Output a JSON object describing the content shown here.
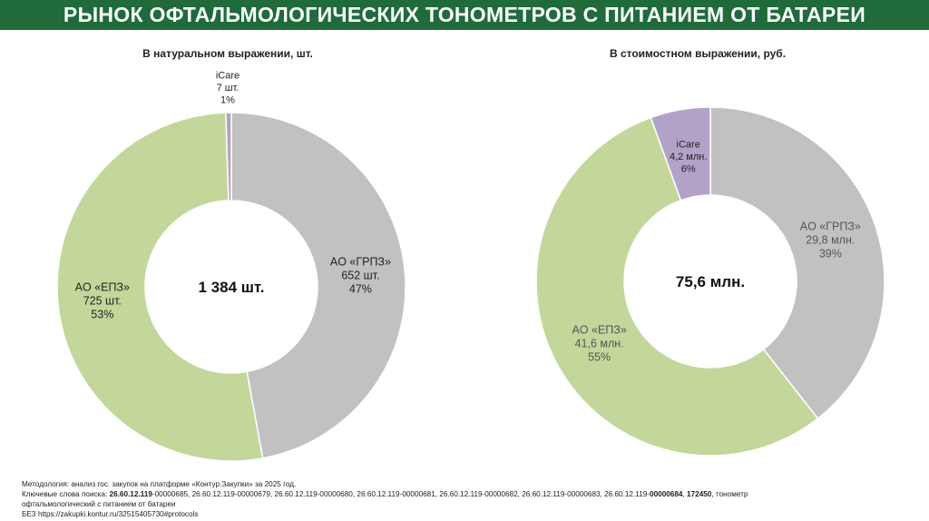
{
  "header": {
    "title": "РЫНОК ОФТАЛЬМОЛОГИЧЕСКИХ ТОНОМЕТРОВ С ПИТАНИЕМ ОТ БАТАРЕИ"
  },
  "colors": {
    "header_bg": "#1f6b3a",
    "grpz": "#c1c1c1",
    "epz": "#c4d79b",
    "icare": "#b3a2c7"
  },
  "chart_data": [
    {
      "type": "donut",
      "title": "В натуральном выражении, шт.",
      "total_label": "1 384 шт.",
      "slices": [
        {
          "name": "AO «ГРПЗ»",
          "value": 652,
          "value_label": "652 шт.",
          "percent": 47,
          "percent_label": "47%",
          "color": "#c1c1c1"
        },
        {
          "name": "AO «ЕПЗ»",
          "value": 725,
          "value_label": "725 шт.",
          "percent": 53,
          "percent_label": "53%",
          "color": "#c4d79b"
        },
        {
          "name": "iCare",
          "value": 7,
          "value_label": "7 шт.",
          "percent": 1,
          "percent_label": "1%",
          "color": "#b3a2c7"
        }
      ]
    },
    {
      "type": "donut",
      "title": "В стоимостном выражении, руб.",
      "total_label": "75,6 млн.",
      "slices": [
        {
          "name": "AO «ГРПЗ»",
          "value": 29.8,
          "value_label": "29,8 млн.",
          "percent": 39,
          "percent_label": "39%",
          "color": "#c1c1c1"
        },
        {
          "name": "AO «ЕПЗ»",
          "value": 41.6,
          "value_label": "41,6 млн.",
          "percent": 55,
          "percent_label": "55%",
          "color": "#c4d79b"
        },
        {
          "name": "iCare",
          "value": 4.2,
          "value_label": "4,2 млн.",
          "percent": 6,
          "percent_label": "6%",
          "color": "#b3a2c7"
        }
      ]
    }
  ],
  "footer": {
    "methodology": "Методология: анализ гос. закупок на платформе «Контур.Закупки» за 2025 год.",
    "keywords_prefix": "Ключевые слова поиска:",
    "keywords_b1": "26.60.12.119",
    "keywords_p1": "-00000685, 26.60.12.119-00000679, 26.60.12.119-00000680, 26.60.12.119-00000681, 26.60.12.119-00000682, 26.60.12.119-00000683, 26.60.12.119-",
    "keywords_b2": "00000684",
    "keywords_p2": ",",
    "keywords_b3": "172450",
    "keywords_p3": ", тонометр",
    "keywords_line2": "офтальмологический с питанием от батареи",
    "source": "БЕЗ https://zakupki.kontur.ru/32515405730#protocols"
  }
}
